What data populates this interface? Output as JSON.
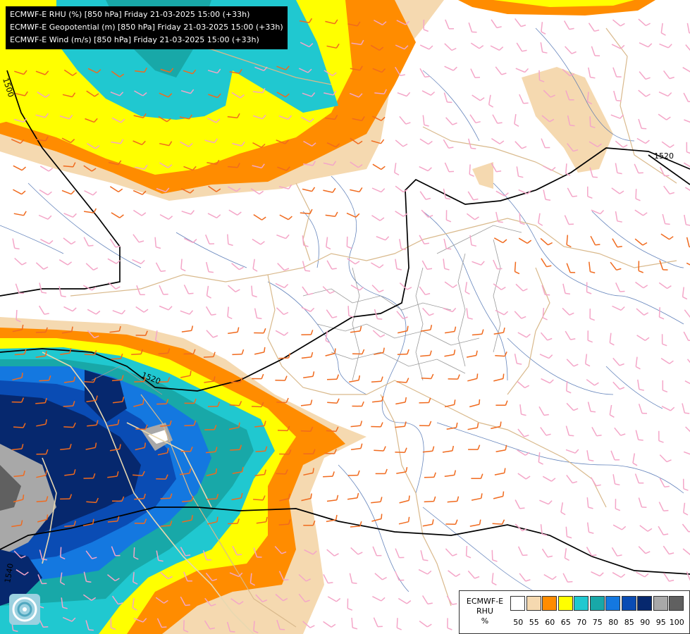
{
  "header": {
    "lines": [
      "ECMWF-E RHU (%) [850 hPa] Friday 21-03-2025 15:00 (+33h)",
      "ECMWF-E Geopotential (m) [850 hPa] Friday 21-03-2025 15:00 (+33h)",
      "ECMWF-E Wind (m/s) [850 hPa] Friday 21-03-2025 15:00 (+33h)"
    ]
  },
  "contours": {
    "labels": [
      "1500",
      "1520",
      "1520",
      "1540"
    ]
  },
  "legend": {
    "title_lines": [
      "ECMWF-E",
      "RHU",
      "%"
    ],
    "levels": [
      "50",
      "55",
      "60",
      "65",
      "70",
      "75",
      "80",
      "85",
      "90",
      "95",
      "100"
    ],
    "colors": [
      "#ffffff",
      "#f5d9b0",
      "#ff8c00",
      "#ffff00",
      "#20c8d0",
      "#18a8a8",
      "#1478e0",
      "#0a4cb4",
      "#06286e",
      "#a8a8a8",
      "#606060"
    ]
  },
  "icons": {
    "logo": "ecmwf-swirl-logo"
  }
}
